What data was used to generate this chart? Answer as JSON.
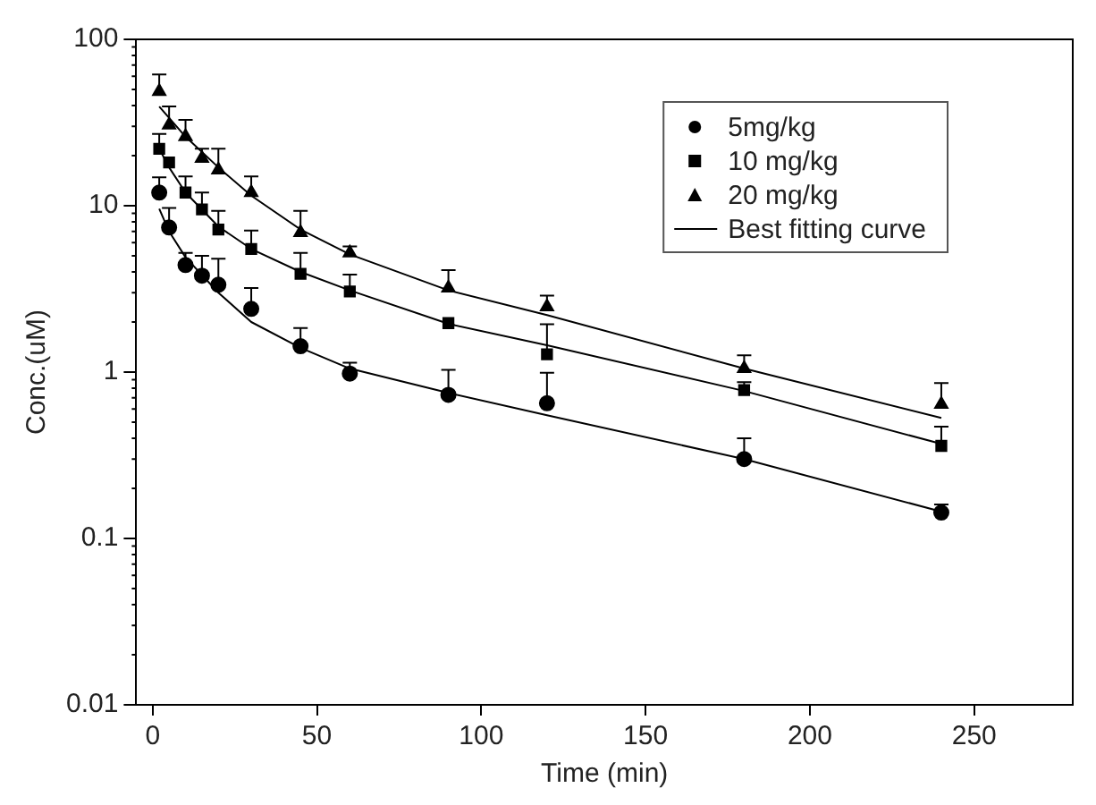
{
  "chart_data": {
    "type": "scatter",
    "xlabel": "Time (min)",
    "ylabel": "Conc.(uM)",
    "log": "y",
    "grid": false,
    "legend": "top right",
    "xlim": [
      -5,
      280
    ],
    "xticks": [
      0,
      50,
      100,
      150,
      200,
      250
    ],
    "ylim": [
      0.01,
      100
    ],
    "yticks": [
      0.01,
      0.1,
      1,
      10,
      100
    ],
    "x": [
      2,
      5,
      10,
      15,
      20,
      30,
      45,
      60,
      90,
      120,
      180,
      240
    ],
    "series": [
      {
        "name": "5mg/kg",
        "type": "scatter",
        "marker": "circle",
        "color": "#000000",
        "values": [
          12,
          7.4,
          4.4,
          3.8,
          3.35,
          2.4,
          1.43,
          0.98,
          0.73,
          0.65,
          0.3,
          0.143
        ],
        "errors": [
          [
            12,
            14.8
          ],
          [
            7.4,
            9.7
          ],
          [
            4.4,
            5.2
          ],
          [
            3.8,
            5
          ],
          [
            3.35,
            4.8
          ],
          [
            2.4,
            3.2
          ],
          [
            1.43,
            1.84
          ],
          [
            0.98,
            1.14
          ],
          [
            0.73,
            1.03
          ],
          [
            0.65,
            0.99
          ],
          [
            0.3,
            0.4
          ],
          [
            0.143,
            0.16
          ]
        ]
      },
      {
        "name": "10 mg/kg",
        "type": "scatter",
        "marker": "square",
        "color": "#000000",
        "values": [
          22,
          18.2,
          12,
          9.5,
          7.2,
          5.5,
          3.9,
          3.05,
          1.97,
          1.28,
          0.78,
          0.36
        ],
        "errors": [
          [
            22,
            27
          ],
          null,
          [
            12,
            15
          ],
          [
            9.5,
            12
          ],
          [
            7.2,
            9.3
          ],
          [
            5.5,
            7.1
          ],
          [
            3.9,
            5.2
          ],
          [
            3.05,
            3.86
          ],
          null,
          [
            1.28,
            1.94
          ],
          [
            0.78,
            0.87
          ],
          [
            0.36,
            0.47
          ]
        ]
      },
      {
        "name": "20 mg/kg",
        "type": "scatter",
        "marker": "triangle",
        "color": "#000000",
        "values": [
          48.6,
          30.6,
          26,
          19.3,
          16.4,
          12,
          6.9,
          5.2,
          3.2,
          2.47,
          1.05,
          0.64
        ],
        "errors": [
          [
            48.6,
            61.6
          ],
          [
            30.6,
            39.5
          ],
          [
            26,
            32.8
          ],
          [
            19.3,
            22
          ],
          [
            16.4,
            22
          ],
          [
            12,
            15
          ],
          [
            6.9,
            9.3
          ],
          [
            5.2,
            5.7
          ],
          [
            3.2,
            4.1
          ],
          [
            2.47,
            2.88
          ],
          [
            1.05,
            1.26
          ],
          [
            0.64,
            0.86
          ]
        ]
      },
      {
        "name": "Best fitting curve",
        "type": "line",
        "marker": "none",
        "color": "#000000",
        "x": [
          2,
          5,
          10,
          20,
          30,
          45,
          60,
          90,
          120,
          180,
          240
        ],
        "values": [
          9.6,
          7,
          4.9,
          3,
          2,
          1.4,
          1.05,
          0.75,
          0.55,
          0.3,
          0.145
        ]
      },
      {
        "type": "line",
        "marker": "none",
        "color": "#000000",
        "x": [
          2,
          5,
          10,
          20,
          30,
          45,
          60,
          90,
          120,
          180,
          240
        ],
        "values": [
          22,
          17,
          12,
          7.5,
          5.5,
          4,
          3.1,
          1.95,
          1.45,
          0.77,
          0.37
        ]
      },
      {
        "type": "line",
        "marker": "none",
        "color": "#000000",
        "x": [
          2,
          10,
          20,
          30,
          45,
          60,
          90,
          120,
          180,
          240
        ],
        "values": [
          39.5,
          26,
          17,
          11.5,
          7.2,
          5.1,
          3.1,
          2.2,
          1.05,
          0.53
        ]
      }
    ]
  }
}
